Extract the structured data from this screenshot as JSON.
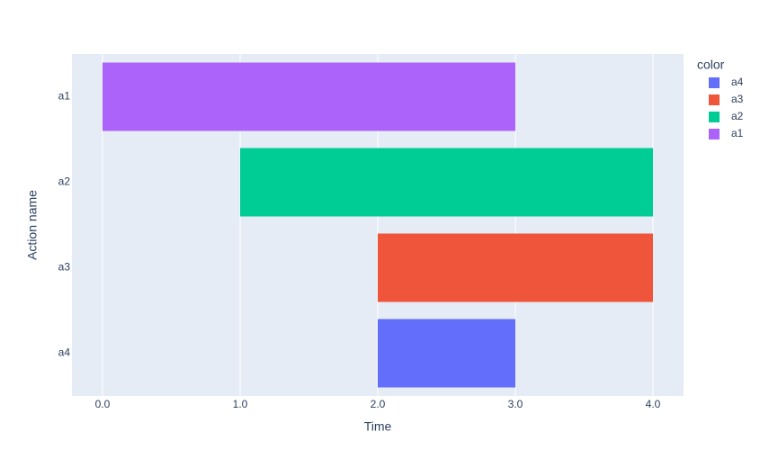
{
  "chart_data": {
    "type": "bar",
    "orientation": "horizontal",
    "xlabel": "Time",
    "ylabel": "Action name",
    "legend_title": "color",
    "categories": [
      "a1",
      "a2",
      "a3",
      "a4"
    ],
    "series": [
      {
        "name": "a4",
        "color": "#636efa",
        "start": [
          null,
          null,
          null,
          2
        ],
        "end": [
          null,
          null,
          null,
          3
        ]
      },
      {
        "name": "a3",
        "color": "#ef553b",
        "start": [
          null,
          null,
          2,
          null
        ],
        "end": [
          null,
          null,
          4,
          null
        ]
      },
      {
        "name": "a2",
        "color": "#00cc96",
        "start": [
          null,
          1,
          null,
          null
        ],
        "end": [
          null,
          4,
          null,
          null
        ]
      },
      {
        "name": "a1",
        "color": "#ab63fa",
        "start": [
          0,
          null,
          null,
          null
        ],
        "end": [
          3,
          null,
          null,
          null
        ]
      }
    ],
    "xlim": [
      -0.222,
      4.222
    ],
    "xticks": [
      {
        "value": 0,
        "label": "0.0"
      },
      {
        "value": 1,
        "label": "1.0"
      },
      {
        "value": 2,
        "label": "2.0"
      },
      {
        "value": 3,
        "label": "3.0"
      },
      {
        "value": 4,
        "label": "4.0"
      }
    ],
    "grid": true,
    "legend": "right"
  }
}
